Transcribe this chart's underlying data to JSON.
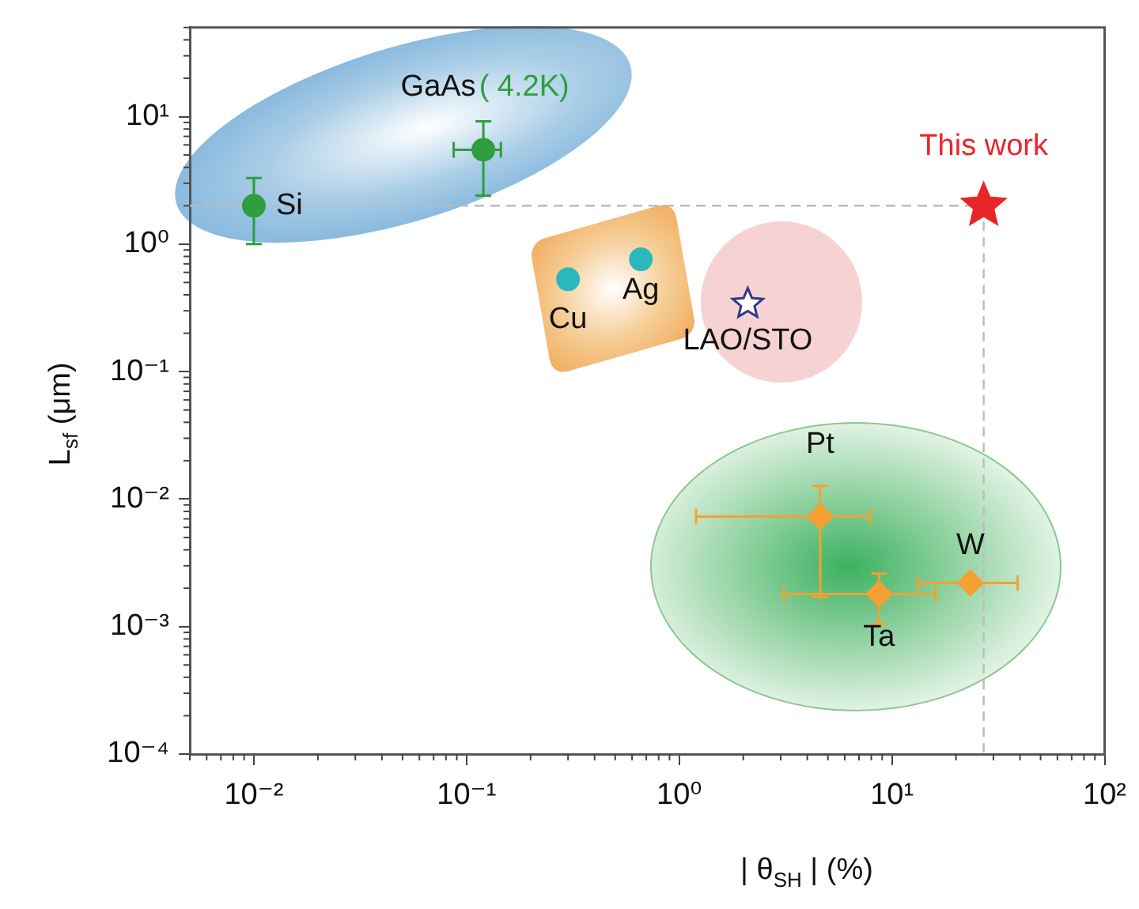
{
  "chart_data": {
    "type": "scatter",
    "xlabel": "| θ$_{SH}$ | (%)",
    "ylabel": "L$_{sf}$ (μm)",
    "log": "xy",
    "grid": false,
    "xlim": [
      0.005,
      100
    ],
    "ylim": [
      0.0001,
      50
    ],
    "xticks": [
      {
        "value": 0.01,
        "label": "10⁻²"
      },
      {
        "value": 0.1,
        "label": "10⁻¹"
      },
      {
        "value": 1,
        "label": "10⁰"
      },
      {
        "value": 10,
        "label": "10¹"
      },
      {
        "value": 100,
        "label": "10²"
      }
    ],
    "yticks": [
      {
        "value": 0.0001,
        "label": "10⁻⁴"
      },
      {
        "value": 0.001,
        "label": "10⁻³"
      },
      {
        "value": 0.01,
        "label": "10⁻²"
      },
      {
        "value": 0.1,
        "label": "10⁻¹"
      },
      {
        "value": 1,
        "label": "10⁰"
      },
      {
        "value": 10,
        "label": "10¹"
      }
    ],
    "series": [
      {
        "name": "Si",
        "color": "#2e9e3e",
        "marker": "circle",
        "x": [
          0.01
        ],
        "values": [
          2
        ],
        "errors": [
          [
            1,
            3.3
          ]
        ]
      },
      {
        "name": "GaAs",
        "color": "#2e9e3e",
        "marker": "circle",
        "x": [
          0.12
        ],
        "values": [
          5.5
        ],
        "errors": [
          [
            2.4,
            9.2
          ]
        ],
        "xerrors": [
          [
            0.087,
            0.145
          ]
        ]
      },
      {
        "name": "Cu",
        "color": "#2bb8bd",
        "marker": "circle",
        "x": [
          0.3
        ],
        "values": [
          0.53
        ]
      },
      {
        "name": "Ag",
        "color": "#2bb8bd",
        "marker": "circle",
        "x": [
          0.66
        ],
        "values": [
          0.76
        ]
      },
      {
        "name": "LAO/STO",
        "color": "#2e3a8c",
        "marker": "star",
        "x": [
          2.1
        ],
        "values": [
          0.34
        ]
      },
      {
        "name": "Pt",
        "color": "#f5a030",
        "marker": "diamond",
        "x": [
          4.6
        ],
        "values": [
          0.0073
        ],
        "errors": [
          [
            0.0017,
            0.0127
          ]
        ],
        "xerrors": [
          [
            1.2,
            7.9
          ]
        ]
      },
      {
        "name": "Ta",
        "color": "#f5a030",
        "marker": "diamond",
        "x": [
          8.7
        ],
        "values": [
          0.0018
        ],
        "errors": [
          [
            0.00105,
            0.0026
          ]
        ],
        "xerrors": [
          [
            3.1,
            16
          ]
        ]
      },
      {
        "name": "W",
        "color": "#f5a030",
        "marker": "diamond",
        "x": [
          23.4
        ],
        "values": [
          0.0022
        ],
        "xerrors": [
          [
            13.3,
            39
          ]
        ]
      },
      {
        "name": "This work",
        "color": "#e8262a",
        "marker": "star",
        "x": [
          27
        ],
        "values": [
          2
        ]
      }
    ],
    "ref_lines": [
      {
        "axis": "y",
        "value": 2,
        "color": "#bbbbbb",
        "line_style": "dashed"
      },
      {
        "axis": "x",
        "value": 27,
        "color": "#bbbbbb",
        "line_style": "dashed"
      }
    ],
    "annotations": [
      {
        "text": "( 4.2K)",
        "x": 0.12,
        "y": 5.5
      }
    ]
  }
}
